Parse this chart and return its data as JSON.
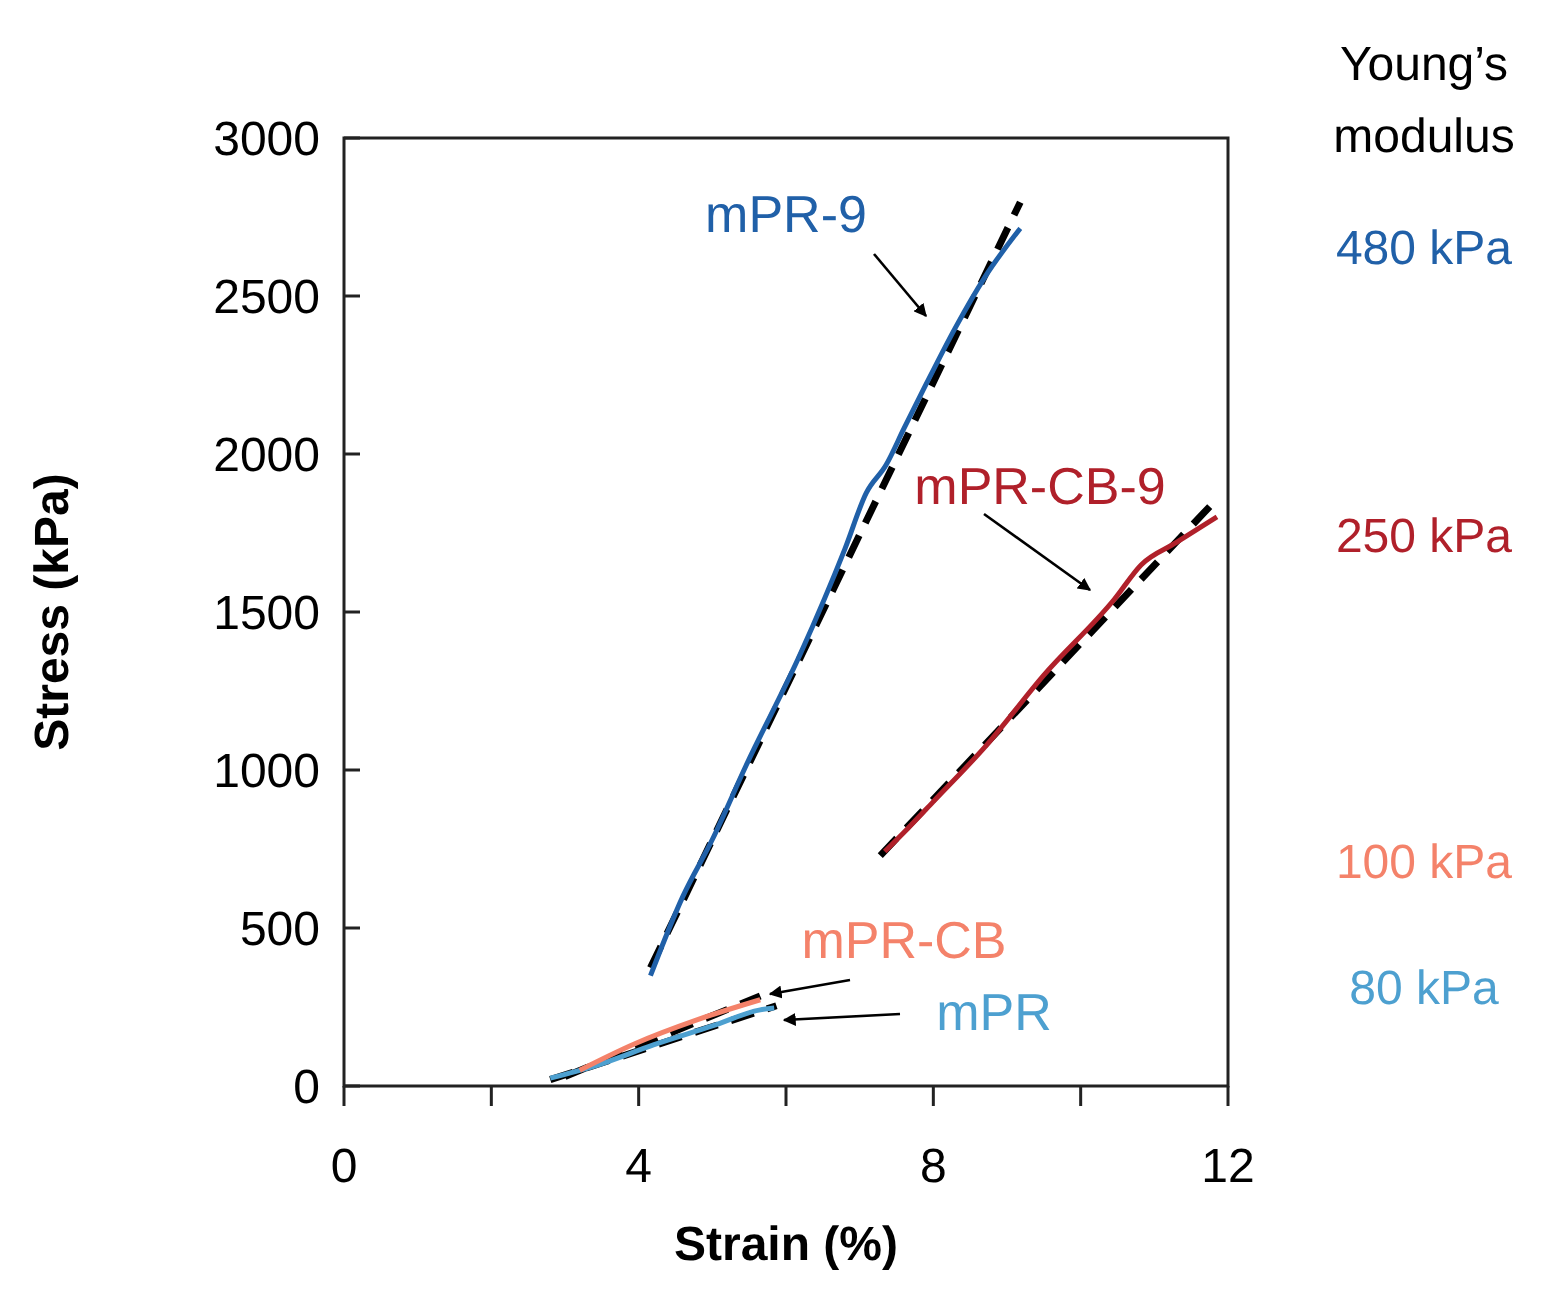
{
  "chart_data": {
    "type": "line",
    "xlabel": "Strain (%)",
    "ylabel": "Stress (kPa)",
    "xlim": [
      0,
      12
    ],
    "xticks": [
      0,
      {
        "value": 2,
        "label": null
      },
      4,
      {
        "value": 6,
        "label": null
      },
      8,
      {
        "value": 10,
        "label": null
      },
      12
    ],
    "ylim": [
      0,
      3000
    ],
    "yticks": [
      0,
      500,
      1000,
      1500,
      2000,
      2500,
      3000
    ],
    "grid": false,
    "series": [
      {
        "name": "mPR-9",
        "color": "#2060a8",
        "x": [
          4.16,
          4.6,
          5.0,
          5.46,
          6.2,
          6.8,
          7.09,
          7.36,
          7.6,
          7.9,
          8.3,
          8.7,
          9.18
        ],
        "values": [
          349,
          600,
          780,
          1015,
          1370,
          1700,
          1877,
          1966,
          2080,
          2220,
          2400,
          2560,
          2714
        ]
      },
      {
        "name": "mPR-CB-9",
        "color": "#b0202a",
        "x": [
          7.34,
          7.64,
          8.0,
          8.72,
          9.5,
          10.46,
          10.82,
          11.3,
          11.85
        ],
        "values": [
          742,
          812,
          900,
          1078,
          1300,
          1541,
          1649,
          1720,
          1801
        ]
      },
      {
        "name": "mPR-CB",
        "color": "#f4826a",
        "x": [
          3.2,
          3.94,
          4.8,
          5.65
        ],
        "values": [
          50,
          133,
          210,
          273
        ]
      },
      {
        "name": "mPR",
        "color": "#4da0d0",
        "x": [
          2.8,
          3.4,
          4.2,
          5.0,
          5.65,
          5.84
        ],
        "values": [
          25,
          63,
          130,
          190,
          241,
          247
        ]
      },
      {
        "type": "line",
        "color": "#000000",
        "line_style": "dashed",
        "x": [
          4.16,
          9.18
        ],
        "values": [
          374,
          2797
        ]
      },
      {
        "type": "line",
        "color": "#000000",
        "line_style": "dashed",
        "x": [
          7.28,
          11.85
        ],
        "values": [
          729,
          1858
        ]
      },
      {
        "type": "line",
        "color": "#000000",
        "line_style": "dashed",
        "x": [
          3.0,
          5.65
        ],
        "values": [
          30,
          285
        ]
      },
      {
        "type": "line",
        "color": "#000000",
        "line_style": "dashed",
        "x": [
          2.8,
          5.87
        ],
        "values": [
          20,
          254
        ]
      }
    ],
    "annotations": [
      "Young’s modulus",
      "480 kPa",
      "250 kPa",
      "100 kPa",
      "80 kPa"
    ]
  }
}
